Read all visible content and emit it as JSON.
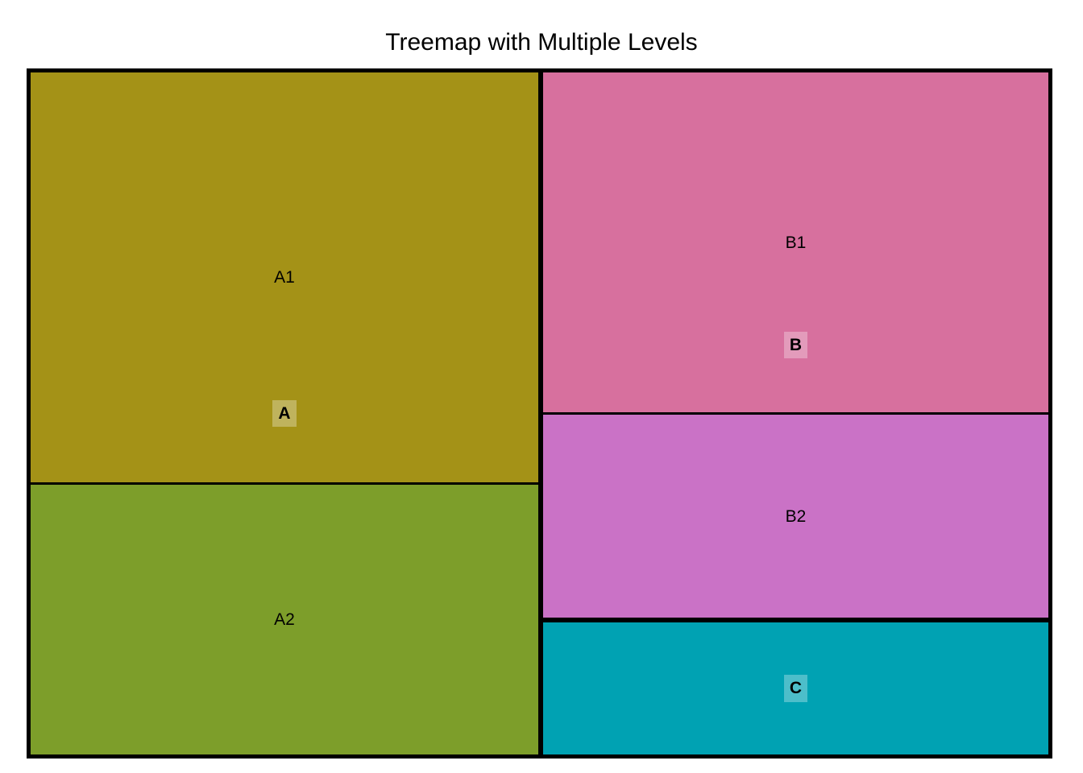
{
  "chart_data": {
    "type": "treemap",
    "title": "Treemap with Multiple Levels",
    "levels": 2,
    "legend": "none",
    "background_color": "#FFFFFF",
    "border_color": "#000000",
    "label_color": "#000000",
    "group_label_highlight": "rgba(255,255,255,0.3)",
    "groups": [
      {
        "label": "A",
        "value": 50,
        "children": [
          {
            "label": "A1",
            "value": 30,
            "color": "#A49217"
          },
          {
            "label": "A2",
            "value": 20,
            "color": "#7D9E2A"
          }
        ]
      },
      {
        "label": "B",
        "value": 40,
        "children": [
          {
            "label": "B1",
            "value": 25,
            "color": "#D7709E"
          },
          {
            "label": "B2",
            "value": 15,
            "color": "#CA72C6"
          }
        ]
      },
      {
        "label": "C",
        "value": 10,
        "color": "#00A2B3",
        "children": []
      }
    ]
  }
}
